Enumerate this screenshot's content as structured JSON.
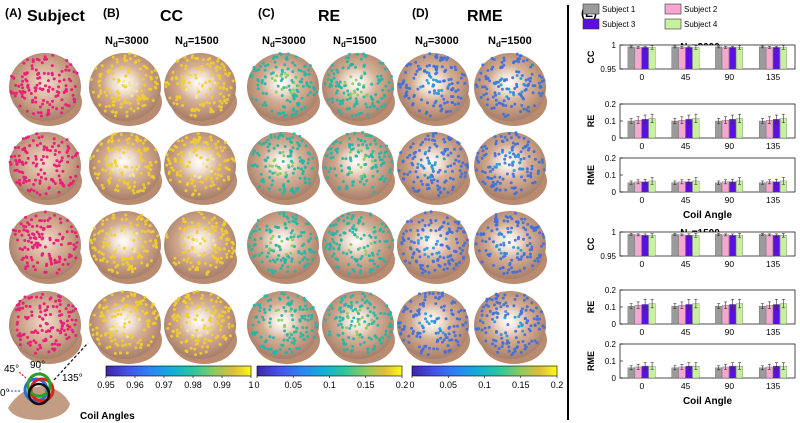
{
  "panels": {
    "a": {
      "letter": "(A)",
      "title": "Subject"
    },
    "b": {
      "letter": "(B)",
      "title": "CC"
    },
    "c": {
      "letter": "(C)",
      "title": "RE"
    },
    "d": {
      "letter": "(D)",
      "title": "RME"
    },
    "e": {
      "letter": "(E)"
    }
  },
  "nd_labels": {
    "prefix": "N",
    "sub": "d",
    "values": [
      "=3000",
      "=1500"
    ]
  },
  "colorbars": [
    {
      "ticks": [
        "0.95",
        "0.96",
        "0.97",
        "0.98",
        "0.99",
        "1"
      ],
      "range": [
        0.95,
        1.0
      ],
      "colormap": "parula"
    },
    {
      "ticks": [
        "0",
        "0.05",
        "0.1",
        "0.15",
        "0.2"
      ],
      "range": [
        0,
        0.2
      ],
      "colormap": "parula"
    },
    {
      "ticks": [
        "0",
        "0.05",
        "0.1",
        "0.15",
        "0.2"
      ],
      "range": [
        0,
        0.2
      ],
      "colormap": "parula"
    }
  ],
  "coil": {
    "angles": [
      "0°",
      "45°",
      "90°",
      "135°"
    ],
    "caption": "Coil Angles"
  },
  "colors": {
    "subject_dots": "#e8207a",
    "head": "#c49a80",
    "cc_dots": "#f2cf2a",
    "re_dots": "#1fb7a8",
    "rme_dots": "#3d6fe0"
  },
  "chart_data": [
    {
      "type": "bar",
      "group": "Nd=3000",
      "title": "",
      "ylabel": "CC",
      "xlabel": "",
      "categories": [
        "0",
        "45",
        "90",
        "135"
      ],
      "ylim": [
        0.95,
        1.0
      ],
      "yticks": [
        "0.95",
        "1"
      ],
      "series": [
        {
          "name": "Subject 1",
          "color": "#9b9b9b",
          "values": [
            0.996,
            0.996,
            0.996,
            0.996
          ],
          "err": [
            0.002,
            0.002,
            0.002,
            0.002
          ]
        },
        {
          "name": "Subject 2",
          "color": "#f7a6cf",
          "values": [
            0.995,
            0.995,
            0.995,
            0.995
          ],
          "err": [
            0.002,
            0.002,
            0.002,
            0.002
          ]
        },
        {
          "name": "Subject 3",
          "color": "#5b10e0",
          "values": [
            0.995,
            0.995,
            0.995,
            0.995
          ],
          "err": [
            0.002,
            0.002,
            0.002,
            0.002
          ]
        },
        {
          "name": "Subject 4",
          "color": "#c8f0a0",
          "values": [
            0.995,
            0.995,
            0.995,
            0.995
          ],
          "err": [
            0.004,
            0.004,
            0.004,
            0.004
          ]
        }
      ]
    },
    {
      "type": "bar",
      "group": "Nd=3000",
      "title": "",
      "ylabel": "RE",
      "xlabel": "",
      "categories": [
        "0",
        "45",
        "90",
        "135"
      ],
      "ylim": [
        0,
        0.2
      ],
      "yticks": [
        "0",
        "0.1",
        "0.2"
      ],
      "series": [
        {
          "name": "Subject 1",
          "color": "#9b9b9b",
          "values": [
            0.1,
            0.1,
            0.1,
            0.1
          ],
          "err": [
            0.015,
            0.015,
            0.015,
            0.015
          ]
        },
        {
          "name": "Subject 2",
          "color": "#f7a6cf",
          "values": [
            0.105,
            0.105,
            0.105,
            0.105
          ],
          "err": [
            0.02,
            0.02,
            0.02,
            0.02
          ]
        },
        {
          "name": "Subject 3",
          "color": "#5b10e0",
          "values": [
            0.11,
            0.11,
            0.11,
            0.11
          ],
          "err": [
            0.025,
            0.025,
            0.025,
            0.025
          ]
        },
        {
          "name": "Subject 4",
          "color": "#c8f0a0",
          "values": [
            0.115,
            0.115,
            0.115,
            0.115
          ],
          "err": [
            0.025,
            0.025,
            0.025,
            0.025
          ]
        }
      ]
    },
    {
      "type": "bar",
      "group": "Nd=3000",
      "title": "",
      "ylabel": "RME",
      "xlabel": "Coil Angle",
      "categories": [
        "0",
        "45",
        "90",
        "135"
      ],
      "ylim": [
        0,
        0.2
      ],
      "yticks": [
        "0",
        "0.1",
        "0.2"
      ],
      "series": [
        {
          "name": "Subject 1",
          "color": "#9b9b9b",
          "values": [
            0.055,
            0.055,
            0.055,
            0.055
          ],
          "err": [
            0.01,
            0.01,
            0.01,
            0.01
          ]
        },
        {
          "name": "Subject 2",
          "color": "#f7a6cf",
          "values": [
            0.06,
            0.06,
            0.06,
            0.06
          ],
          "err": [
            0.012,
            0.012,
            0.012,
            0.012
          ]
        },
        {
          "name": "Subject 3",
          "color": "#5b10e0",
          "values": [
            0.06,
            0.06,
            0.06,
            0.06
          ],
          "err": [
            0.015,
            0.015,
            0.015,
            0.015
          ]
        },
        {
          "name": "Subject 4",
          "color": "#c8f0a0",
          "values": [
            0.065,
            0.065,
            0.065,
            0.065
          ],
          "err": [
            0.02,
            0.02,
            0.02,
            0.02
          ]
        }
      ]
    },
    {
      "type": "bar",
      "group": "Nd=1500",
      "title": "",
      "ylabel": "CC",
      "xlabel": "",
      "categories": [
        "0",
        "45",
        "90",
        "135"
      ],
      "ylim": [
        0.95,
        1.0
      ],
      "yticks": [
        "0.95",
        "1"
      ],
      "series": [
        {
          "name": "Subject 1",
          "color": "#9b9b9b",
          "values": [
            0.995,
            0.995,
            0.995,
            0.995
          ],
          "err": [
            0.002,
            0.002,
            0.002,
            0.002
          ]
        },
        {
          "name": "Subject 2",
          "color": "#f7a6cf",
          "values": [
            0.994,
            0.994,
            0.994,
            0.994
          ],
          "err": [
            0.002,
            0.002,
            0.002,
            0.002
          ]
        },
        {
          "name": "Subject 3",
          "color": "#5b10e0",
          "values": [
            0.993,
            0.993,
            0.993,
            0.993
          ],
          "err": [
            0.003,
            0.003,
            0.003,
            0.003
          ]
        },
        {
          "name": "Subject 4",
          "color": "#c8f0a0",
          "values": [
            0.993,
            0.993,
            0.993,
            0.993
          ],
          "err": [
            0.004,
            0.004,
            0.004,
            0.004
          ]
        }
      ]
    },
    {
      "type": "bar",
      "group": "Nd=1500",
      "title": "",
      "ylabel": "RE",
      "xlabel": "",
      "categories": [
        "0",
        "45",
        "90",
        "135"
      ],
      "ylim": [
        0,
        0.2
      ],
      "yticks": [
        "0",
        "0.1",
        "0.2"
      ],
      "series": [
        {
          "name": "Subject 1",
          "color": "#9b9b9b",
          "values": [
            0.105,
            0.105,
            0.105,
            0.105
          ],
          "err": [
            0.015,
            0.015,
            0.015,
            0.015
          ]
        },
        {
          "name": "Subject 2",
          "color": "#f7a6cf",
          "values": [
            0.11,
            0.11,
            0.11,
            0.11
          ],
          "err": [
            0.02,
            0.02,
            0.02,
            0.02
          ]
        },
        {
          "name": "Subject 3",
          "color": "#5b10e0",
          "values": [
            0.115,
            0.115,
            0.115,
            0.115
          ],
          "err": [
            0.03,
            0.03,
            0.03,
            0.03
          ]
        },
        {
          "name": "Subject 4",
          "color": "#c8f0a0",
          "values": [
            0.12,
            0.12,
            0.12,
            0.12
          ],
          "err": [
            0.025,
            0.025,
            0.025,
            0.025
          ]
        }
      ]
    },
    {
      "type": "bar",
      "group": "Nd=1500",
      "title": "",
      "ylabel": "RME",
      "xlabel": "Coil Angle",
      "categories": [
        "0",
        "45",
        "90",
        "135"
      ],
      "ylim": [
        0,
        0.2
      ],
      "yticks": [
        "0",
        "0.1",
        "0.2"
      ],
      "series": [
        {
          "name": "Subject 1",
          "color": "#9b9b9b",
          "values": [
            0.06,
            0.06,
            0.06,
            0.06
          ],
          "err": [
            0.012,
            0.012,
            0.012,
            0.012
          ]
        },
        {
          "name": "Subject 2",
          "color": "#f7a6cf",
          "values": [
            0.065,
            0.065,
            0.065,
            0.065
          ],
          "err": [
            0.015,
            0.015,
            0.015,
            0.015
          ]
        },
        {
          "name": "Subject 3",
          "color": "#5b10e0",
          "values": [
            0.07,
            0.07,
            0.07,
            0.07
          ],
          "err": [
            0.02,
            0.02,
            0.02,
            0.02
          ]
        },
        {
          "name": "Subject 4",
          "color": "#c8f0a0",
          "values": [
            0.07,
            0.07,
            0.07,
            0.07
          ],
          "err": [
            0.02,
            0.02,
            0.02,
            0.02
          ]
        }
      ]
    }
  ]
}
